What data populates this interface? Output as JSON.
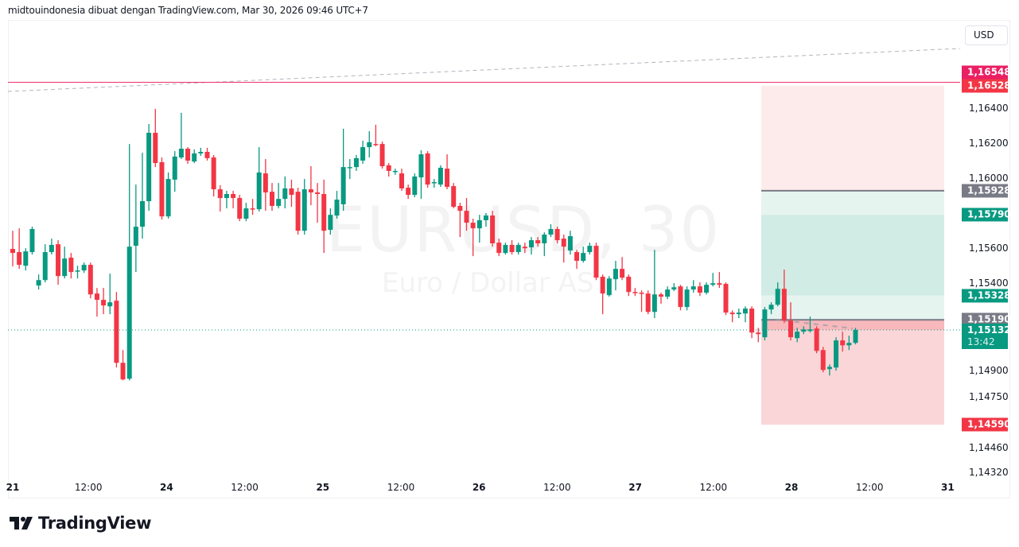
{
  "header": {
    "attribution": "midtouindonesia dibuat dengan TradingView.com, Mar 30, 2026 09:46 UTC+7"
  },
  "currency_button": "USD",
  "watermark": {
    "symbol": "EURUSD, 30",
    "description": "Euro / Dollar AS"
  },
  "logo": {
    "text": "TradingView"
  },
  "colors": {
    "up": "#089981",
    "down": "#f23645",
    "pink_line": "#f0306a",
    "gray_tag": "#787b86"
  },
  "chart_data": {
    "type": "candlestick",
    "symbol": "EURUSD",
    "ylim": [
      1.1425,
      1.1675
    ],
    "grid": false,
    "y_ticks": [
      {
        "value": 1.164,
        "label": "1,16400"
      },
      {
        "value": 1.162,
        "label": "1,16200"
      },
      {
        "value": 1.16,
        "label": "1,16000"
      },
      {
        "value": 1.156,
        "label": "1,15600"
      },
      {
        "value": 1.154,
        "label": "1,15400"
      },
      {
        "value": 1.149,
        "label": "1,14900"
      },
      {
        "value": 1.1475,
        "label": "1,14750"
      },
      {
        "value": 1.1446,
        "label": "1,14460"
      },
      {
        "value": 1.1432,
        "label": "1,14320"
      }
    ],
    "x_ticks": [
      {
        "label": "21",
        "day": true
      },
      {
        "label": "12:00",
        "day": false
      },
      {
        "label": "24",
        "day": true
      },
      {
        "label": "12:00",
        "day": false
      },
      {
        "label": "25",
        "day": true
      },
      {
        "label": "12:00",
        "day": false
      },
      {
        "label": "26",
        "day": true
      },
      {
        "label": "12:00",
        "day": false
      },
      {
        "label": "27",
        "day": true
      },
      {
        "label": "12:00",
        "day": false
      },
      {
        "label": "28",
        "day": true
      },
      {
        "label": "12:00",
        "day": false
      },
      {
        "label": "31",
        "day": true
      }
    ],
    "price_tags": [
      {
        "value": 1.16548,
        "label": "1,16548",
        "color": "#e91e63"
      },
      {
        "value": 1.16528,
        "label": "1,16528",
        "color": "#f23645"
      },
      {
        "value": 1.15928,
        "label": "1,15928",
        "color": "#787b86"
      },
      {
        "value": 1.1579,
        "label": "1,15790",
        "color": "#089981"
      },
      {
        "value": 1.15328,
        "label": "1,15328",
        "color": "#089981"
      },
      {
        "value": 1.1519,
        "label": "1,15190",
        "color": "#787b86"
      },
      {
        "value": 1.1459,
        "label": "1,14590",
        "color": "#f23645"
      }
    ],
    "last_price": {
      "value": 1.15132,
      "label": "1,15132",
      "countdown": "13:42",
      "color": "#089981"
    },
    "horizontal_line": 1.16548,
    "position_tool": {
      "stop_top": 1.16528,
      "entry_upper": 1.15928,
      "target_upper": 1.1579,
      "target_lower": 1.15328,
      "entry_lower": 1.1519,
      "stop_bottom": 1.1459
    },
    "candles_ohlc": [
      [
        1.15595,
        1.15699,
        1.15495,
        1.15572
      ],
      [
        1.15577,
        1.15713,
        1.15481,
        1.15504
      ],
      [
        1.15499,
        1.15599,
        1.15472,
        1.15581
      ],
      [
        1.15577,
        1.15722,
        1.15563,
        1.15709
      ],
      [
        1.15386,
        1.15449,
        1.15363,
        1.15417
      ],
      [
        1.15417,
        1.15622,
        1.15404,
        1.15577
      ],
      [
        1.15577,
        1.15654,
        1.15563,
        1.15618
      ],
      [
        1.15622,
        1.15645,
        1.1539,
        1.1544
      ],
      [
        1.1544,
        1.15608,
        1.15426,
        1.1554
      ],
      [
        1.15545,
        1.15572,
        1.15426,
        1.15463
      ],
      [
        1.15472,
        1.15499,
        1.15426,
        1.15472
      ],
      [
        1.15472,
        1.15517,
        1.15458,
        1.15504
      ],
      [
        1.15504,
        1.15517,
        1.15313,
        1.15335
      ],
      [
        1.1534,
        1.15372,
        1.15208,
        1.15304
      ],
      [
        1.15304,
        1.15372,
        1.15222,
        1.15272
      ],
      [
        1.15267,
        1.15454,
        1.15222,
        1.1529
      ],
      [
        1.15299,
        1.15349,
        1.14917,
        1.14944
      ],
      [
        1.14944,
        1.15017,
        1.14844,
        1.14849
      ],
      [
        1.14853,
        1.16195,
        1.14844,
        1.15608
      ],
      [
        1.15613,
        1.15963,
        1.15463,
        1.15722
      ],
      [
        1.15722,
        1.16145,
        1.15654,
        1.15868
      ],
      [
        1.15868,
        1.16309,
        1.15813,
        1.16259
      ],
      [
        1.16259,
        1.16396,
        1.16063,
        1.16086
      ],
      [
        1.16091,
        1.16118,
        1.15763,
        1.15781
      ],
      [
        1.15781,
        1.16032,
        1.15768,
        1.15995
      ],
      [
        1.15991,
        1.16154,
        1.15922,
        1.16123
      ],
      [
        1.16118,
        1.16373,
        1.16109,
        1.16168
      ],
      [
        1.16168,
        1.16177,
        1.16082,
        1.161
      ],
      [
        1.16095,
        1.16164,
        1.16086,
        1.16141
      ],
      [
        1.16141,
        1.16173,
        1.16127,
        1.1615
      ],
      [
        1.1615,
        1.16173,
        1.161,
        1.16114
      ],
      [
        1.16118,
        1.16132,
        1.15895,
        1.15936
      ],
      [
        1.15936,
        1.15959,
        1.15809,
        1.15886
      ],
      [
        1.15886,
        1.15927,
        1.15827,
        1.15909
      ],
      [
        1.15909,
        1.15927,
        1.15827,
        1.15886
      ],
      [
        1.15886,
        1.15904,
        1.15754,
        1.15768
      ],
      [
        1.15768,
        1.15859,
        1.15754,
        1.15827
      ],
      [
        1.15827,
        1.15881,
        1.1579,
        1.15822
      ],
      [
        1.15822,
        1.16177,
        1.15809,
        1.16032
      ],
      [
        1.16027,
        1.16109,
        1.15813,
        1.15918
      ],
      [
        1.15922,
        1.15972,
        1.15813,
        1.15841
      ],
      [
        1.15841,
        1.15972,
        1.15827,
        1.15881
      ],
      [
        1.15881,
        1.16009,
        1.15827,
        1.15941
      ],
      [
        1.15941,
        1.15991,
        1.15836,
        1.15904
      ],
      [
        1.15922,
        1.15945,
        1.15677,
        1.15699
      ],
      [
        1.15699,
        1.15995,
        1.15677,
        1.15936
      ],
      [
        1.15936,
        1.16068,
        1.15845,
        1.15918
      ],
      [
        1.15918,
        1.15972,
        1.15745,
        1.15909
      ],
      [
        1.15909,
        1.15991,
        1.15572,
        1.15699
      ],
      [
        1.15704,
        1.15827,
        1.15677,
        1.1579
      ],
      [
        1.15786,
        1.15927,
        1.15768,
        1.15877
      ],
      [
        1.1585,
        1.16282,
        1.15813,
        1.16063
      ],
      [
        1.16059,
        1.16109,
        1.15995,
        1.16063
      ],
      [
        1.16063,
        1.16132,
        1.16041,
        1.16114
      ],
      [
        1.161,
        1.16214,
        1.16082,
        1.16177
      ],
      [
        1.16177,
        1.16268,
        1.16118,
        1.16205
      ],
      [
        1.16195,
        1.16305,
        1.16182,
        1.16191
      ],
      [
        1.16195,
        1.16209,
        1.16054,
        1.16068
      ],
      [
        1.16073,
        1.16086,
        1.16009,
        1.16041
      ],
      [
        1.16041,
        1.16054,
        1.16018,
        1.16041
      ],
      [
        1.16027,
        1.16054,
        1.15927,
        1.15941
      ],
      [
        1.15945,
        1.15963,
        1.15881,
        1.15904
      ],
      [
        1.15904,
        1.16027,
        1.15891,
        1.16009
      ],
      [
        1.16004,
        1.16159,
        1.15881,
        1.16136
      ],
      [
        1.16141,
        1.16154,
        1.15945,
        1.15963
      ],
      [
        1.15972,
        1.15995,
        1.15945,
        1.15977
      ],
      [
        1.15963,
        1.16073,
        1.1595,
        1.16059
      ],
      [
        1.16054,
        1.16136,
        1.15936,
        1.1595
      ],
      [
        1.15954,
        1.15972,
        1.15827,
        1.15836
      ],
      [
        1.15841,
        1.15859,
        1.15663,
        1.15813
      ],
      [
        1.15813,
        1.15886,
        1.15699,
        1.15745
      ],
      [
        1.15745,
        1.15768,
        1.15554,
        1.15713
      ],
      [
        1.15713,
        1.1579,
        1.15631,
        1.15759
      ],
      [
        1.15759,
        1.158,
        1.15722,
        1.15786
      ],
      [
        1.15786,
        1.15813,
        1.15608,
        1.15627
      ],
      [
        1.15631,
        1.15654,
        1.15554,
        1.15572
      ],
      [
        1.15572,
        1.15631,
        1.15563,
        1.15618
      ],
      [
        1.15618,
        1.15645,
        1.15563,
        1.15577
      ],
      [
        1.15577,
        1.15631,
        1.15563,
        1.15618
      ],
      [
        1.15608,
        1.15631,
        1.15572,
        1.15599
      ],
      [
        1.15604,
        1.15663,
        1.15563,
        1.15645
      ],
      [
        1.15645,
        1.15663,
        1.15608,
        1.15627
      ],
      [
        1.15627,
        1.1569,
        1.15554,
        1.15677
      ],
      [
        1.15677,
        1.15736,
        1.15663,
        1.15709
      ],
      [
        1.15709,
        1.15722,
        1.15627,
        1.15645
      ],
      [
        1.15654,
        1.15677,
        1.15517,
        1.15608
      ],
      [
        1.15586,
        1.15699,
        1.15563,
        1.15668
      ],
      [
        1.15577,
        1.1559,
        1.15481,
        1.15527
      ],
      [
        1.15527,
        1.15608,
        1.15517,
        1.15572
      ],
      [
        1.15577,
        1.15631,
        1.15563,
        1.15613
      ],
      [
        1.15613,
        1.15631,
        1.15417,
        1.15431
      ],
      [
        1.15436,
        1.15449,
        1.15222,
        1.1534
      ],
      [
        1.15331,
        1.1544,
        1.15322,
        1.15426
      ],
      [
        1.15422,
        1.15527,
        1.15358,
        1.15481
      ],
      [
        1.15481,
        1.15549,
        1.15417,
        1.15431
      ],
      [
        1.15436,
        1.15449,
        1.15326,
        1.15349
      ],
      [
        1.15349,
        1.15372,
        1.15326,
        1.15345
      ],
      [
        1.15345,
        1.15358,
        1.15235,
        1.1534
      ],
      [
        1.1534,
        1.15358,
        1.15222,
        1.15235
      ],
      [
        1.15235,
        1.1559,
        1.15199,
        1.15335
      ],
      [
        1.15335,
        1.15345,
        1.15281,
        1.15322
      ],
      [
        1.15322,
        1.15381,
        1.15308,
        1.15363
      ],
      [
        1.15363,
        1.15399,
        1.15354,
        1.15376
      ],
      [
        1.15381,
        1.1539,
        1.15244,
        1.15263
      ],
      [
        1.15263,
        1.15381,
        1.15244,
        1.15363
      ],
      [
        1.15363,
        1.15417,
        1.15345,
        1.15381
      ],
      [
        1.15381,
        1.15404,
        1.15326,
        1.15345
      ],
      [
        1.15345,
        1.15404,
        1.15335,
        1.1539
      ],
      [
        1.1539,
        1.15458,
        1.15381,
        1.15399
      ],
      [
        1.15399,
        1.15463,
        1.15372,
        1.1539
      ],
      [
        1.15395,
        1.15404,
        1.15217,
        1.15231
      ],
      [
        1.15231,
        1.15244,
        1.15176,
        1.15222
      ],
      [
        1.15222,
        1.15254,
        1.15199,
        1.15231
      ],
      [
        1.15226,
        1.15267,
        1.15176,
        1.15254
      ],
      [
        1.15254,
        1.15267,
        1.15085,
        1.15117
      ],
      [
        1.15117,
        1.15144,
        1.15062,
        1.15108
      ],
      [
        1.1509,
        1.15263,
        1.15072,
        1.15249
      ],
      [
        1.15249,
        1.1529,
        1.15222,
        1.15276
      ],
      [
        1.15276,
        1.15404,
        1.15267,
        1.15367
      ],
      [
        1.15367,
        1.15477,
        1.15172,
        1.15185
      ],
      [
        1.15185,
        1.1529,
        1.15072,
        1.1509
      ],
      [
        1.15085,
        1.15144,
        1.15062,
        1.15122
      ],
      [
        1.15122,
        1.15153,
        1.15108,
        1.15135
      ],
      [
        1.15126,
        1.15208,
        1.15117,
        1.15135
      ],
      [
        1.1514,
        1.15153,
        1.14999,
        1.15012
      ],
      [
        1.15017,
        1.15035,
        1.1489,
        1.14903
      ],
      [
        1.14908,
        1.14935,
        1.14871,
        1.14921
      ],
      [
        1.14917,
        1.1509,
        1.14899,
        1.15072
      ],
      [
        1.15072,
        1.15122,
        1.15008,
        1.15044
      ],
      [
        1.15044,
        1.15099,
        1.15017,
        1.15058
      ],
      [
        1.15058,
        1.15144,
        1.15049,
        1.15132
      ]
    ]
  }
}
